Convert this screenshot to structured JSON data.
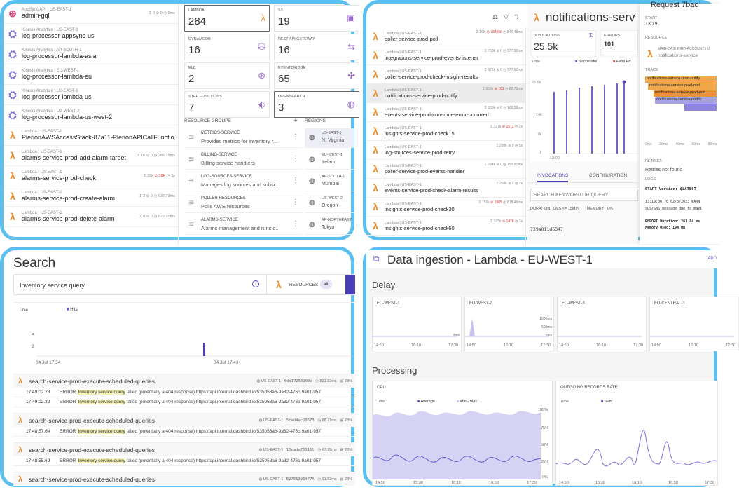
{
  "panel1": {
    "list": [
      {
        "icon": "appsync",
        "meta": "AppSync API | US-EAST-1",
        "name": "admin-gql",
        "stats": {
          "inv": "0",
          "err": "0",
          "dur": "0ms"
        }
      },
      {
        "icon": "kinesis",
        "meta": "Kinesis Analytics | US-EAST-1",
        "name": "log-processor-appsync-us",
        "stats": null
      },
      {
        "icon": "kinesis",
        "meta": "Kinesis Analytics | AP-SOUTH-1",
        "name": "log-processor-lambda-asia",
        "stats": null
      },
      {
        "icon": "kinesis",
        "meta": "Kinesis Analytics | EU-WEST-1",
        "name": "log-processor-lambda-eu",
        "stats": null
      },
      {
        "icon": "kinesis",
        "meta": "Kinesis Analytics | US-EAST-1",
        "name": "log-processor-lambda-us",
        "stats": null
      },
      {
        "icon": "kinesis",
        "meta": "Kinesis Analytics | US-WEST-2",
        "name": "log-processor-lambda-us-west-2",
        "stats": null
      },
      {
        "icon": "lambda",
        "meta": "Lambda | US-EAST-1",
        "name": "PlerionAWSAccessStack-87a11-PlerionAPICallFunctio...",
        "stats": null
      },
      {
        "icon": "lambda",
        "meta": "Lambda | US-EAST-1",
        "name": "alarms-service-prod-add-alarm-target",
        "stats": {
          "inv": "16",
          "err": "0",
          "dur": "286.19ms"
        }
      },
      {
        "icon": "lambda",
        "meta": "Lambda | US-EAST-1",
        "name": "alarms-service-prod-check",
        "stats": {
          "inv": "33k",
          "err": "39K",
          "dur": "3s"
        }
      },
      {
        "icon": "lambda",
        "meta": "Lambda | US-EAST-1",
        "name": "alarms-service-prod-create-alarm",
        "stats": {
          "inv": "3",
          "err": "0",
          "dur": "632.73ms"
        }
      },
      {
        "icon": "lambda",
        "meta": "Lambda | US-EAST-1",
        "name": "alarms-service-prod-delete-alarm",
        "stats": {
          "inv": "0",
          "err": "0",
          "dur": "822.39ms"
        }
      }
    ],
    "cards": [
      {
        "label": "LAMBDA",
        "value": "284",
        "icon": "λ"
      },
      {
        "label": "S3",
        "value": "19",
        "icon": "▣"
      },
      {
        "label": "DYNAMODB",
        "value": "16",
        "icon": "⛁"
      },
      {
        "label": "REST API GATEWAY",
        "value": "16",
        "icon": "⇆"
      },
      {
        "label": "ELB",
        "value": "2",
        "icon": "⊛"
      },
      {
        "label": "EVENTBRIDGE",
        "value": "65",
        "icon": "✣"
      },
      {
        "label": "STEP FUNCTIONS",
        "value": "7",
        "icon": "⬖"
      },
      {
        "label": "OPENSEARCH",
        "value": "3",
        "icon": "◍"
      }
    ],
    "groups_title": "RESOURCE GROUPS",
    "regions_title": "REGIONS",
    "groups": [
      {
        "title": "METRICS-SERVICE",
        "desc": "Provides metrics for inventory r..."
      },
      {
        "title": "BILLING-SERVICE",
        "desc": "Billing service handlers"
      },
      {
        "title": "LOG-SOURCES-SERVICE",
        "desc": "Manages log sources and subsc..."
      },
      {
        "title": "POLLER-RESOURCES",
        "desc": "Polls AWS resources"
      },
      {
        "title": "ALARMS-SERVICE",
        "desc": "Alarms management and runs c..."
      }
    ],
    "regions": [
      {
        "code": "US-EAST-1",
        "name": "N. Virginia"
      },
      {
        "code": "EU-WEST-1",
        "name": "Ireland"
      },
      {
        "code": "AP-SOUTH-1",
        "name": "Mumbai"
      },
      {
        "code": "US-WEST-2",
        "name": "Oregon"
      },
      {
        "code": "AP-NORTHEAST",
        "name": "Tokyo"
      }
    ]
  },
  "panel2": {
    "list": [
      {
        "meta": "Lambda | US-EAST-1",
        "name": "poller-service-prod-poll",
        "inv": "16K",
        "err": "784556",
        "dur": "846.48ms"
      },
      {
        "meta": "Lambda | US-EAST-1",
        "name": "integrations-service-prod-events-listener",
        "inv": "753k",
        "err": "0",
        "dur": "577.92ms"
      },
      {
        "meta": "Lambda | US-EAST-1",
        "name": "poller-service-prod-check-insight-results",
        "inv": "672k",
        "err": "0",
        "dur": "577.92ms"
      },
      {
        "meta": "Lambda | US-EAST-1",
        "name": "notifications-service-prod-notify",
        "inv": "659k",
        "err": "101",
        "dur": "82.79ms"
      },
      {
        "meta": "Lambda | US-EAST-1",
        "name": "events-service-prod-consume-error-occurred",
        "inv": "553k",
        "err": "0",
        "dur": "106.28ms"
      },
      {
        "meta": "Lambda | US-EAST-1",
        "name": "insights-service-prod-check15",
        "inv": "327k",
        "err": "2573",
        "dur": "2s"
      },
      {
        "meta": "Lambda | US-EAST-1",
        "name": "log-sources-service-prod-retry",
        "inv": "298k",
        "err": "0",
        "dur": "5s"
      },
      {
        "meta": "Lambda | US-EAST-1",
        "name": "poller-service-prod-events-handler",
        "inv": "294k",
        "err": "0",
        "dur": "153.81ms"
      },
      {
        "meta": "Lambda | US-EAST-1",
        "name": "events-service-prod-check-alarm-results",
        "inv": "258k",
        "err": "0",
        "dur": "2s"
      },
      {
        "meta": "Lambda | US-EAST-1",
        "name": "insights-service-prod-check30",
        "inv": "150k",
        "err": "1005",
        "dur": "815.45ms"
      },
      {
        "meta": "Lambda | US-EAST-1",
        "name": "insights-service-prod-check60",
        "inv": "123k",
        "err": "1476",
        "dur": "1s"
      }
    ],
    "detail_title": "notifications-serv",
    "invocations_label": "INVOCATIONS",
    "invocations_value": "25.5k",
    "errors_label": "ERRORS",
    "errors_value": "101",
    "chart_time": "Time",
    "legend_success": "Successful",
    "legend_fatal": "Fatal Err",
    "yticks": [
      "26.6k",
      "14k",
      "7k",
      "0"
    ],
    "xtick": "13:00",
    "tab_invocations": "INVOCATIONS",
    "tab_configuration": "CONFIGURATION",
    "search_placeholder": "SEARCH KEYWORD OR QUERY",
    "duration_label": "DURATION",
    "duration_value": "0MS <= 15MIN",
    "memory_label": "MEMORY",
    "memory_value": "0%",
    "request_id": "739a011d6347",
    "req_title": "Request 7bac",
    "start_label": "START",
    "start_value": "13:19",
    "resource_label": "RESOURCE",
    "resource_account": "MAIN-DASHBIRD-ACCOUNT | U",
    "resource_name": "notifications-service",
    "trace_label": "TRACE",
    "trace_bars": [
      "notifications-service-prod-notify",
      "notifications-service-prod-noti",
      "notifications-service-prod-noti",
      "notifications-service-notific",
      ""
    ],
    "trace_ticks": [
      "0ms",
      "20ms",
      "40ms",
      "60ms",
      "80ms"
    ],
    "retries_label": "RETRIES",
    "retries_value": "Retries not found",
    "logs_label": "LOGS",
    "log_lines": [
      "START  Version: $LATEST",
      "13:19:00.70 02/3/2023  WARN",
      "SQS/SNS message due to maxi",
      "REPORT  Duration: 263.84 ms",
      "Memory Used: 194 MB"
    ]
  },
  "panel3": {
    "title": "Search",
    "query": "Inventory service query",
    "resources_label": "RESOURCES",
    "resources_value": "all",
    "chart_time": "Time",
    "legend_hits": "Hits",
    "yticks": [
      "5",
      "2"
    ],
    "xticks": [
      "04 Jul 17:34",
      "04 Jul 17:43"
    ],
    "groups": [
      {
        "name": "search-service-prod-execute-scheduled-queries",
        "region": "US-EAST-1",
        "id": "6dd17250100e",
        "dur": "821.83ms",
        "mem": "28%",
        "logs": [
          {
            "time": "17:49:02.28",
            "level": "ERROR",
            "a": "Inventory",
            "b": "service",
            "c": "query",
            "rest": "failed (potentially a 404 response) https://api.internal.dashbird.io/535058a6-9a32-476c-9a01-957"
          },
          {
            "time": "17:49:02.32",
            "level": "ERROR",
            "a": "Inventory",
            "b": "service",
            "c": "query",
            "rest": "failed (potentially a 404 response) https://api.internal.dashbird.io/535058a6-9a32-476c-9a01-957"
          }
        ]
      },
      {
        "name": "search-service-prod-execute-scheduled-queries",
        "region": "US-EAST-1",
        "id": "5cad4ac20673",
        "dur": "68.71ms",
        "mem": "28%",
        "logs": [
          {
            "time": "17:48:57.64",
            "level": "ERROR",
            "a": "Inventory",
            "b": "service",
            "c": "query",
            "rest": "failed (potentially a 404 response) https://api.internal.dashbird.io/535058a6-9a32-476c-9a01-957"
          }
        ]
      },
      {
        "name": "search-service-prod-execute-scheduled-queries",
        "region": "US-EAST-1",
        "id": "15cade70316l",
        "dur": "67.79ms",
        "mem": "28%",
        "logs": [
          {
            "time": "17:48:55.69",
            "level": "ERROR",
            "a": "Inventory",
            "b": "service",
            "c": "query",
            "rest": "failed (potentially a 404 response) https://api.internal.dashbird.io/535058a6-9a32-476c-9a01-957"
          }
        ]
      },
      {
        "name": "search-service-prod-execute-scheduled-queries",
        "region": "US-EAST-1",
        "id": "E2751396477A",
        "dur": "91.52ms",
        "mem": "28%",
        "logs": []
      }
    ]
  },
  "panel4": {
    "title": "Data ingestion - Lambda - EU-WEST-1",
    "add_label": "ADD",
    "delay_title": "Delay",
    "processing_title": "Processing",
    "delay_regions": [
      "EU-WEST-1",
      "EU-WEST-2",
      "EU-WEST-3",
      "EU-CENTRAL-1"
    ],
    "delay_yticks": [
      "1000ms",
      "500ms",
      "0ms"
    ],
    "delay_xticks": [
      "14:50",
      "16:10",
      "17:30"
    ],
    "cpu_title": "CPU",
    "cpu_time": "Time",
    "cpu_legend_avg": "Average",
    "cpu_legend_minmax": "Min - Max",
    "cpu_yticks": [
      "100%",
      "75%",
      "50%",
      "25%",
      "0%"
    ],
    "cpu_xticks": [
      "14:50",
      "15:30",
      "16:10",
      "16:50",
      "17:30"
    ],
    "out_title": "OUTGOING RECORDS RATE",
    "out_time": "Time",
    "out_legend": "Sum",
    "out_xticks": [
      "14:50",
      "15:30",
      "16:10",
      "16:50",
      "17:30"
    ]
  },
  "colors": {
    "border": "#5bc0f0",
    "accent": "#5a4fcf",
    "lambda": "#f08a24",
    "error": "#d33333"
  }
}
